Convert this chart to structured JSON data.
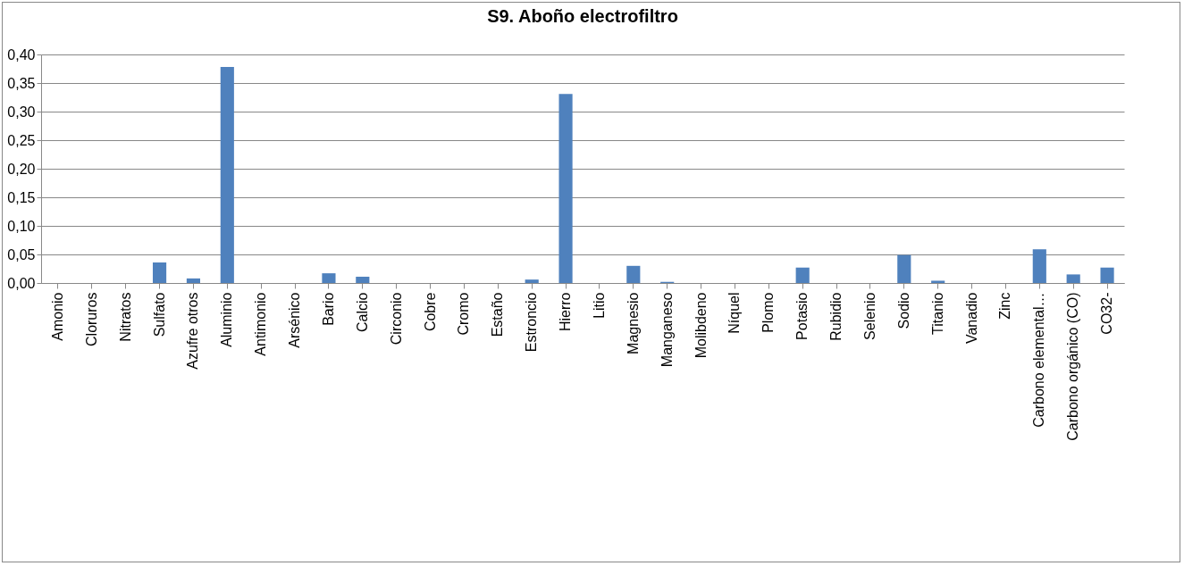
{
  "chart_data": {
    "type": "bar",
    "title": "S9. Aboño electrofiltro",
    "categories": [
      "Amonio",
      "Cloruros",
      "Nitratos",
      "Sulfato",
      "Azufre otros",
      "Aluminio",
      "Antimonio",
      "Arsénico",
      "Bario",
      "Calcio",
      "Circonio",
      "Cobre",
      "Cromo",
      "Estaño",
      "Estroncio",
      "Hierro",
      "Litio",
      "Magnesio",
      "Manganeso",
      "Molibdeno",
      "Níquel",
      "Plomo",
      "Potasio",
      "Rubidio",
      "Selenio",
      "Sodio",
      "Titanio",
      "Vanadio",
      "Zinc",
      "Carbono elemental…",
      "Carbono orgánico (CO)",
      "CO32-"
    ],
    "values": [
      0,
      0,
      0,
      0.036,
      0.008,
      0.378,
      0,
      0,
      0.017,
      0.011,
      0,
      0,
      0,
      0,
      0.006,
      0.331,
      0,
      0.03,
      0.002,
      0,
      0,
      0,
      0.027,
      0,
      0,
      0.049,
      0.004,
      0,
      0,
      0.059,
      0.015,
      0.027
    ],
    "color": "#4f81bd",
    "ylim": [
      0,
      0.4
    ],
    "yticks": [
      {
        "value": 0,
        "label": "0,00"
      },
      {
        "value": 0.05,
        "label": "0,05"
      },
      {
        "value": 0.1,
        "label": "0,10"
      },
      {
        "value": 0.15,
        "label": "0,15"
      },
      {
        "value": 0.2,
        "label": "0,20"
      },
      {
        "value": 0.25,
        "label": "0,25"
      },
      {
        "value": 0.3,
        "label": "0,30"
      },
      {
        "value": 0.35,
        "label": "0,35"
      },
      {
        "value": 0.4,
        "label": "0,40"
      }
    ],
    "grid": "y"
  }
}
